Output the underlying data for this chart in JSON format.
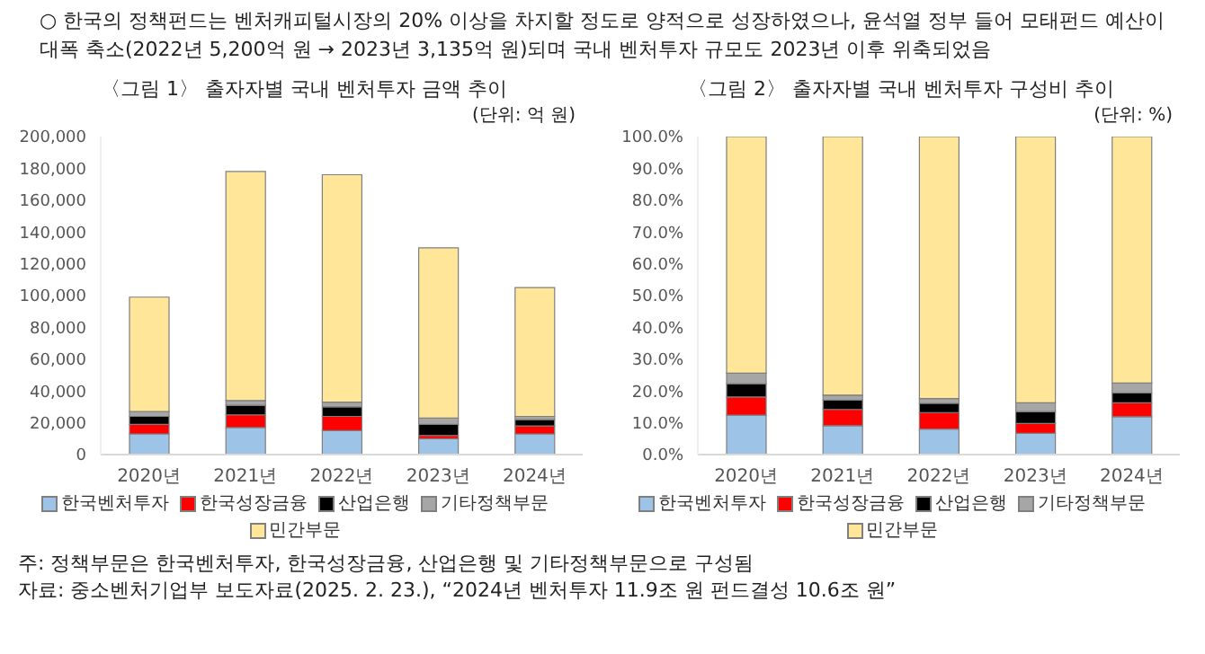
{
  "chart_data": [
    {
      "type": "bar",
      "title": "〈그림 1〉 출자자별 국내 벤처투자 금액 추이",
      "subtitle": "(단위: 억 원)",
      "annotations": [
        "○ 한국의 정책펀드는 벤처캐피털시장의 20% 이상을 차지할 정도로 양적으로 성장하였으나, 윤석열 정부 들어 모태펀드 예산이 대폭 축소(2022년 5,200억 원 → 2023년 3,135억 원)되며 국내 벤처투자 규모도 2023년 이후 위축되었음"
      ],
      "categories": [
        "2020년",
        "2021년",
        "2022년",
        "2023년",
        "2024년"
      ],
      "stacked": true,
      "legend": "bottom",
      "ylim": [
        0,
        200000
      ],
      "yticks": [
        {
          "value": 0,
          "label": "0"
        },
        {
          "value": 20000,
          "label": "20,000"
        },
        {
          "value": 40000,
          "label": "40,000"
        },
        {
          "value": 60000,
          "label": "60,000"
        },
        {
          "value": 80000,
          "label": "80,000"
        },
        {
          "value": 100000,
          "label": "100,000"
        },
        {
          "value": 120000,
          "label": "120,000"
        },
        {
          "value": 140000,
          "label": "140,000"
        },
        {
          "value": 160000,
          "label": "160,000"
        },
        {
          "value": 180000,
          "label": "180,000"
        },
        {
          "value": 200000,
          "label": "200,000"
        }
      ],
      "series": [
        {
          "name": "한국벤처투자",
          "color": "#9dc3e6",
          "values": [
            13000,
            17000,
            15000,
            10000,
            13000
          ]
        },
        {
          "name": "한국성장금융",
          "color": "#ff0000",
          "values": [
            6000,
            8000,
            9000,
            2000,
            5000
          ]
        },
        {
          "name": "산업은행",
          "color": "#000000",
          "values": [
            5000,
            6000,
            6000,
            7000,
            4000
          ]
        },
        {
          "name": "기타정책부문",
          "color": "#a6a6a6",
          "values": [
            3000,
            3000,
            3000,
            4000,
            2000
          ]
        },
        {
          "name": "민간부문",
          "color": "#ffe699",
          "values": [
            72000,
            144000,
            143000,
            107000,
            81000
          ]
        }
      ]
    },
    {
      "type": "bar",
      "title": "〈그림 2〉 출자자별 국내 벤처투자 구성비 추이",
      "subtitle": "(단위: %)",
      "annotations": [
        "주: 정책부문은 한국벤처투자, 한국성장금융, 산업은행 및 기타정책부문으로 구성됨",
        "자료: 중소벤처기업부 보도자료(2025. 2. 23.), “2024년 벤처투자 11.9조 원 펀드결성 10.6조 원”"
      ],
      "categories": [
        "2020년",
        "2021년",
        "2022년",
        "2023년",
        "2024년"
      ],
      "stacked": true,
      "legend": "bottom",
      "ylim": [
        0,
        100
      ],
      "yticks": [
        {
          "value": 0,
          "label": "0.0%"
        },
        {
          "value": 10,
          "label": "10.0%"
        },
        {
          "value": 20,
          "label": "20.0%"
        },
        {
          "value": 30,
          "label": "30.0%"
        },
        {
          "value": 40,
          "label": "40.0%"
        },
        {
          "value": 50,
          "label": "50.0%"
        },
        {
          "value": 60,
          "label": "60.0%"
        },
        {
          "value": 70,
          "label": "70.0%"
        },
        {
          "value": 80,
          "label": "80.0%"
        },
        {
          "value": 90,
          "label": "90.0%"
        },
        {
          "value": 100,
          "label": "100.0%"
        }
      ],
      "series": [
        {
          "name": "한국벤처투자",
          "color": "#9dc3e6",
          "values": [
            12.4,
            9.1,
            8.0,
            6.7,
            11.9
          ]
        },
        {
          "name": "한국성장금융",
          "color": "#ff0000",
          "values": [
            5.7,
            5.1,
            5.2,
            3.1,
            4.4
          ]
        },
        {
          "name": "산업은행",
          "color": "#000000",
          "values": [
            4.2,
            2.9,
            2.9,
            3.7,
            3.1
          ]
        },
        {
          "name": "기타정책부문",
          "color": "#a6a6a6",
          "values": [
            3.3,
            1.6,
            1.5,
            2.8,
            3.1
          ]
        },
        {
          "name": "민간부문",
          "color": "#ffe699",
          "values": [
            74.4,
            81.3,
            82.4,
            83.7,
            77.5
          ]
        }
      ]
    }
  ]
}
